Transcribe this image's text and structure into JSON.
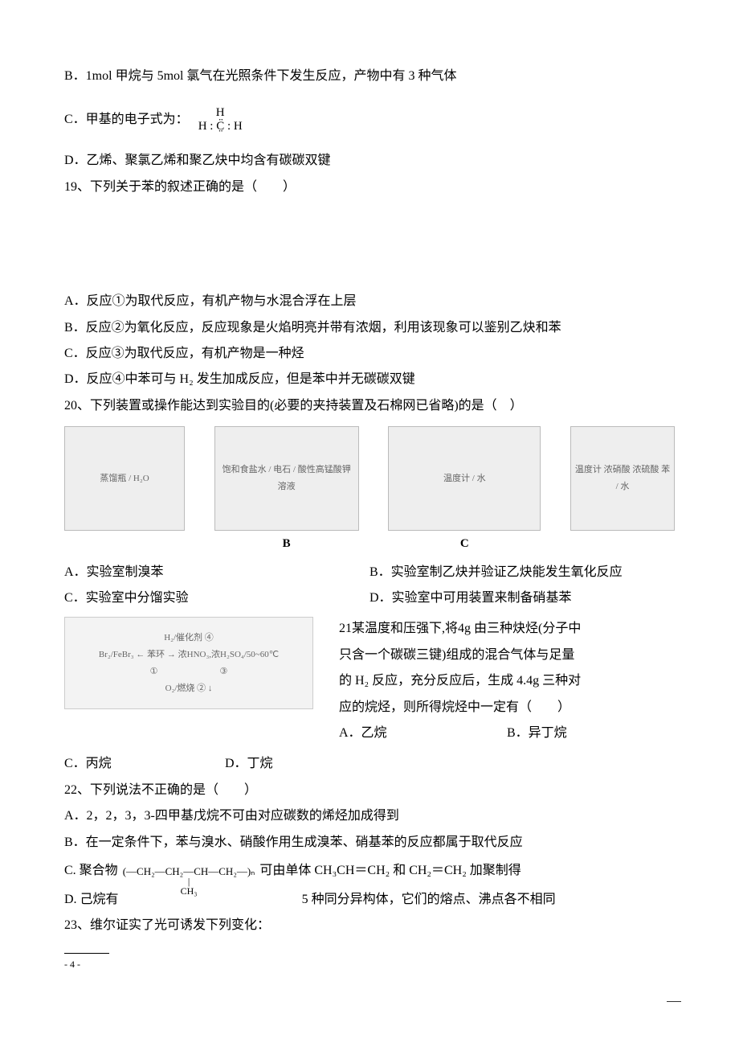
{
  "optB_prev": "B．1mol 甲烷与 5mol 氯气在光照条件下发生反应，产物中有 3 种气体",
  "optC_prev_label": "C．甲基的电子式为：",
  "formula_top": "H",
  "formula_mid": "H : C̤̈ : H",
  "optD_prev": "D．乙烯、聚氯乙烯和聚乙炔中均含有碳碳双键",
  "q19_stem": "19、下列关于苯的叙述正确的是（　　）",
  "q19_A": "A．反应①为取代反应，有机产物与水混合浮在上层",
  "q19_B": "B．反应②为氧化反应，反应现象是火焰明亮并带有浓烟，利用该现象可以鉴别乙炔和苯",
  "q19_C": "C．反应③为取代反应，有机产物是一种烃",
  "q19_D": "D．反应④中苯可与 H₂ 发生加成反应，但是苯中并无碳碳双键",
  "q20_stem": "20、下列装置或操作能达到实验目的(必要的夹持装置及石棉网已省略)的是（　）",
  "img_A_caption": "蒸馏瓶 / H₂O",
  "img_B_caption": "饱和食盐水 / 电石 / 酸性高锰酸钾溶液",
  "img_B_label": "B",
  "img_C_caption": "温度计 / 水",
  "img_C_label": "C",
  "img_D_caption": "温度计 浓硝酸 浓硫酸 苯 / 水",
  "q20_A": "A．实验室制溴苯",
  "q20_B": "B．实验室制乙炔并验证乙炔能发生氧化反应",
  "q20_C": "C．实验室中分馏实验",
  "q20_D": "D．实验室中可用装置来制备硝基苯",
  "q21_l1": "21某温度和压强下,将4g 由三种炔烃(分子中",
  "q21_l2": "只含一个碳碳三键)组成的混合气体与足量",
  "q21_l3": "的 H₂ 反应，充分反应后，生成 4.4g 三种对",
  "q21_l4": "应的烷烃，则所得烷烃中一定有（　　）",
  "q21_optA": "A．乙烷",
  "q21_optB": "B．异丁烷",
  "q21_optC": "C．丙烷",
  "q21_optD": "D．丁烷",
  "scheme_text": "H₂/催化剂 ④\nBr₂/FeBr₃ ← 苯环 → 浓HNO₃,浓H₂SO₄/50~60℃\n①　　　　　　　③\nO₂/燃烧 ② ↓",
  "q22_stem": "22、下列说法不正确的是（　　）",
  "q22_A": "A．2，2，3，3-四甲基戊烷不可由对应碳数的烯烃加成得到",
  "q22_B": "B．在一定条件下，苯与溴水、硝酸作用生成溴苯、硝基苯的反应都属于取代反应",
  "q22_C_pre": "C. 聚合物",
  "q22_C_poly_main": "(―CH₂―CH₂―CH―CH₂―)ₙ",
  "q22_C_poly_bar": "|",
  "q22_C_poly_side": "CH₃",
  "q22_C_post": "可由单体 CH₃CH＝CH₂ 和 CH₂＝CH₂ 加聚制得",
  "q22_D_pre": "D. 己烷有",
  "q22_D_post": "5 种同分异构体，它们的熔点、沸点各不相同",
  "q23_stem": "23、维尔证实了光可诱发下列变化：",
  "footer_page": "- 4 -",
  "sizes": {
    "imgA_w": 150,
    "imgA_h": 130,
    "imgB_w": 180,
    "imgB_h": 130,
    "imgC_w": 190,
    "imgC_h": 130,
    "imgD_w": 130,
    "imgD_h": 130
  },
  "colors": {
    "text": "#000000",
    "bg": "#ffffff",
    "placeholder_bg": "#eeeeee",
    "placeholder_border": "#bbbbbb"
  }
}
